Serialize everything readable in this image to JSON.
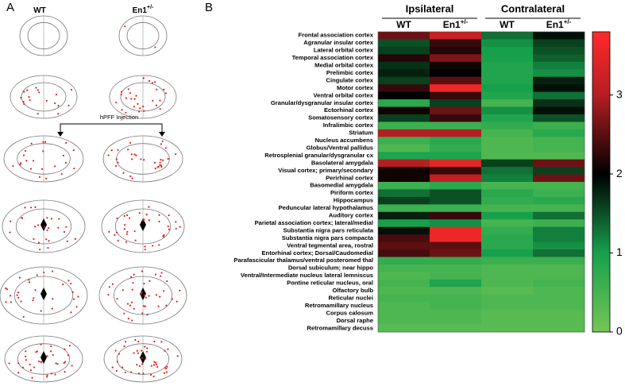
{
  "panel_labels": [
    "A",
    "B"
  ],
  "schematic": {
    "columns": [
      {
        "base": "WT",
        "sup": null
      },
      {
        "base": "En1",
        "sup": "+/-"
      }
    ],
    "annotation": "hPFF Injection"
  },
  "chart_data": {
    "type": "heatmap",
    "column_groups": [
      "Ipsilateral",
      "Contralateral"
    ],
    "columns": [
      {
        "base": "WT",
        "sup": null
      },
      {
        "base": "En1",
        "sup": "+/-"
      },
      {
        "base": "WT",
        "sup": null
      },
      {
        "base": "En1",
        "sup": "+/-"
      }
    ],
    "categories": [
      "Frontal association cortex",
      "Agranular insular cortex",
      "Lateral orbital cortex",
      "Temporal association cortex",
      "Medial orbital cortex",
      "Prelimbic cortex",
      "Cingulate cortex",
      "Motor cortex",
      "Ventral orbital cortex",
      "Granular/dysgranular insular cortex",
      "Ectorhinal cortex",
      "Somatosensory cortex",
      "Infralimbic cortex",
      "Striatum",
      "Nucleus accumbens",
      "Globus/Ventral pallidus",
      "Retrosplenial granular/dysgranular cx",
      "Basolateral amygdala",
      "Visual cortex; primary/secondary",
      "Perirhinal cortex",
      "Basomedial amygdala",
      "Piriform cortex",
      "Hippocampus",
      "Peduncular lateral hypothalamus",
      "Auditory cortex",
      "Parietal association cortex; lateral/medial",
      "Substantia nigra pars reticulata",
      "Substantia nigra pars compacta",
      "Ventral tegmental area, rostral",
      "Entorhinal cortex; Dorsal/Caudomedial",
      "Parafascicular thalamus/ventral posteromed thal",
      "Dorsal subiculum; near hippo",
      "Ventral/Intermediate nucleus lateral lemniscus",
      "Pontine reticular nucleus, oral",
      "Olfactory bulb",
      "Reticular nuclei",
      "Retromamillary nucleus",
      "Corpus calosum",
      "Dorsal raphe",
      "Retromamillary decuss"
    ],
    "values": [
      [
        2.6,
        3.2,
        1.3,
        1.9
      ],
      [
        1.5,
        2.3,
        1.1,
        1.6
      ],
      [
        1.6,
        2.2,
        1.0,
        1.5
      ],
      [
        2.2,
        2.7,
        1.0,
        1.4
      ],
      [
        1.7,
        2.1,
        0.9,
        1.2
      ],
      [
        1.8,
        2.0,
        0.9,
        1.1
      ],
      [
        1.6,
        2.5,
        0.9,
        1.8
      ],
      [
        2.3,
        3.6,
        1.0,
        1.9
      ],
      [
        2.0,
        2.3,
        0.9,
        1.3
      ],
      [
        0.8,
        1.6,
        0.5,
        1.7
      ],
      [
        2.1,
        2.6,
        1.1,
        1.9
      ],
      [
        1.6,
        2.3,
        0.9,
        1.5
      ],
      [
        0.6,
        0.6,
        0.7,
        0.6
      ],
      [
        3.0,
        3.0,
        0.5,
        0.8
      ],
      [
        0.6,
        0.8,
        0.4,
        0.5
      ],
      [
        0.4,
        0.7,
        0.4,
        0.5
      ],
      [
        0.9,
        0.9,
        0.4,
        0.4
      ],
      [
        3.0,
        3.5,
        1.6,
        2.6
      ],
      [
        2.1,
        2.3,
        1.3,
        1.6
      ],
      [
        2.1,
        3.1,
        1.2,
        2.6
      ],
      [
        0.6,
        0.8,
        0.5,
        0.5
      ],
      [
        1.3,
        1.5,
        0.8,
        0.6
      ],
      [
        1.6,
        1.5,
        0.7,
        0.8
      ],
      [
        0.6,
        0.6,
        0.5,
        0.5
      ],
      [
        1.8,
        2.3,
        1.0,
        1.3
      ],
      [
        1.0,
        1.1,
        0.5,
        0.6
      ],
      [
        1.9,
        3.6,
        0.7,
        1.2
      ],
      [
        2.4,
        3.6,
        0.8,
        1.2
      ],
      [
        2.5,
        2.5,
        0.8,
        1.1
      ],
      [
        2.4,
        2.6,
        1.0,
        1.3
      ],
      [
        0.7,
        0.7,
        0.6,
        0.6
      ],
      [
        0.5,
        0.5,
        0.4,
        0.4
      ],
      [
        0.4,
        0.5,
        0.4,
        0.4
      ],
      [
        0.5,
        0.9,
        0.4,
        0.5
      ],
      [
        0.4,
        0.4,
        0.3,
        0.4
      ],
      [
        0.5,
        0.5,
        0.4,
        0.4
      ],
      [
        0.4,
        0.5,
        0.4,
        0.4
      ],
      [
        0.4,
        0.4,
        0.3,
        0.3
      ],
      [
        0.4,
        0.4,
        0.3,
        0.3
      ],
      [
        0.3,
        0.3,
        0.3,
        0.3
      ]
    ],
    "colorscale": [
      {
        "value": 0,
        "color": "#74c655"
      },
      {
        "value": 1,
        "color": "#17a04c"
      },
      {
        "value": 2,
        "color": "#000000"
      },
      {
        "value": 3,
        "color": "#b51e22"
      },
      {
        "value": 3.8,
        "color": "#ff2a2a"
      }
    ],
    "ylim": [
      0,
      3.8
    ],
    "yticks": [
      0,
      1,
      2,
      3
    ]
  }
}
